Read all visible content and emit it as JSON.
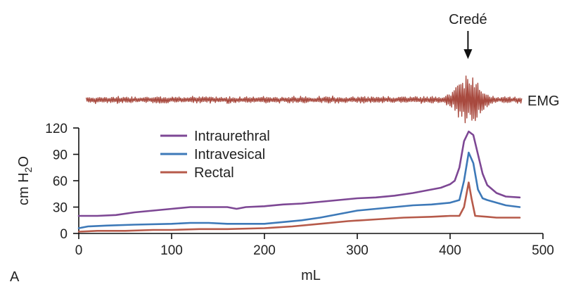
{
  "chart_data": {
    "type": "line",
    "panel_label": "A",
    "xlabel": "mL",
    "ylabel": "cm H2O",
    "ylabel_parts": {
      "prefix": "cm H",
      "subscript": "2",
      "suffix": "O"
    },
    "xlim": [
      0,
      500
    ],
    "ylim": [
      0,
      120
    ],
    "x_ticks": [
      0,
      100,
      200,
      300,
      400,
      500
    ],
    "y_ticks": [
      0,
      30,
      60,
      90,
      120
    ],
    "grid": false,
    "legend_position": "top-left",
    "annotations": {
      "event_label": "Credé",
      "event_x": 420,
      "emg_label": "EMG"
    },
    "emg": {
      "x_range": [
        5,
        475
      ],
      "burst_center_x": 420,
      "color": "#a84a3f"
    },
    "series": [
      {
        "name": "Intraurethral",
        "color": "#7d4794",
        "points": [
          [
            0,
            20
          ],
          [
            20,
            20
          ],
          [
            40,
            21
          ],
          [
            60,
            24
          ],
          [
            80,
            26
          ],
          [
            100,
            28
          ],
          [
            120,
            30
          ],
          [
            140,
            30
          ],
          [
            160,
            30
          ],
          [
            170,
            28
          ],
          [
            180,
            30
          ],
          [
            200,
            31
          ],
          [
            220,
            33
          ],
          [
            240,
            34
          ],
          [
            260,
            36
          ],
          [
            280,
            38
          ],
          [
            300,
            40
          ],
          [
            320,
            41
          ],
          [
            340,
            43
          ],
          [
            360,
            46
          ],
          [
            380,
            50
          ],
          [
            390,
            52
          ],
          [
            400,
            56
          ],
          [
            405,
            60
          ],
          [
            410,
            75
          ],
          [
            415,
            105
          ],
          [
            420,
            116
          ],
          [
            425,
            112
          ],
          [
            430,
            90
          ],
          [
            435,
            68
          ],
          [
            440,
            55
          ],
          [
            450,
            46
          ],
          [
            460,
            42
          ],
          [
            475,
            41
          ]
        ]
      },
      {
        "name": "Intravesical",
        "color": "#3d79b8",
        "points": [
          [
            0,
            6
          ],
          [
            10,
            8
          ],
          [
            30,
            9
          ],
          [
            60,
            10
          ],
          [
            100,
            11
          ],
          [
            120,
            12
          ],
          [
            140,
            12
          ],
          [
            160,
            11
          ],
          [
            180,
            11
          ],
          [
            200,
            11
          ],
          [
            220,
            13
          ],
          [
            240,
            15
          ],
          [
            260,
            18
          ],
          [
            280,
            22
          ],
          [
            300,
            26
          ],
          [
            320,
            28
          ],
          [
            340,
            30
          ],
          [
            360,
            32
          ],
          [
            380,
            33
          ],
          [
            400,
            35
          ],
          [
            410,
            38
          ],
          [
            415,
            60
          ],
          [
            420,
            92
          ],
          [
            425,
            80
          ],
          [
            430,
            50
          ],
          [
            435,
            40
          ],
          [
            440,
            38
          ],
          [
            450,
            35
          ],
          [
            460,
            32
          ],
          [
            475,
            30
          ]
        ]
      },
      {
        "name": "Rectal",
        "color": "#b65a4a",
        "points": [
          [
            0,
            2
          ],
          [
            20,
            3
          ],
          [
            50,
            3
          ],
          [
            80,
            4
          ],
          [
            100,
            4
          ],
          [
            130,
            5
          ],
          [
            160,
            5
          ],
          [
            200,
            6
          ],
          [
            230,
            8
          ],
          [
            260,
            11
          ],
          [
            290,
            14
          ],
          [
            320,
            16
          ],
          [
            350,
            18
          ],
          [
            380,
            19
          ],
          [
            400,
            20
          ],
          [
            410,
            20
          ],
          [
            415,
            30
          ],
          [
            420,
            58
          ],
          [
            423,
            40
          ],
          [
            427,
            20
          ],
          [
            440,
            19
          ],
          [
            450,
            18
          ],
          [
            460,
            18
          ],
          [
            475,
            18
          ]
        ]
      }
    ]
  }
}
